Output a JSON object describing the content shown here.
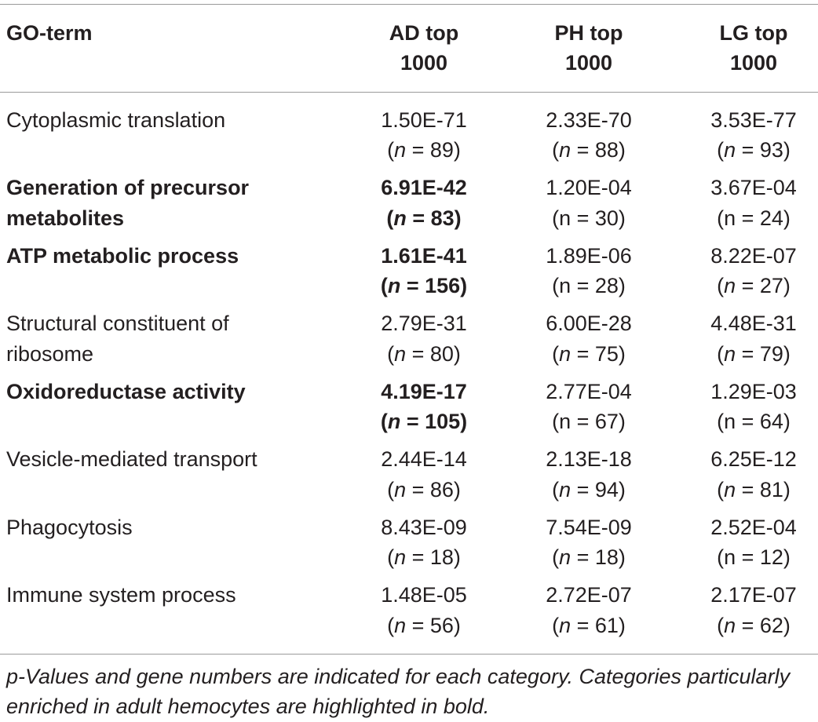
{
  "table": {
    "headers": {
      "go_term": "GO-term",
      "ad": "AD top 1000",
      "ph": "PH top 1000",
      "lg": "LG top 1000"
    },
    "rows": [
      {
        "term": "Cytoplasmic translation",
        "bold": false,
        "ad": {
          "p_value": "1.50E-71",
          "n_text": "(n = 89)",
          "n_italic": true,
          "bold": false
        },
        "ph": {
          "p_value": "2.33E-70",
          "n_text": "(n = 88)",
          "n_italic": true,
          "bold": false
        },
        "lg": {
          "p_value": "3.53E-77",
          "n_text": "(n = 93)",
          "n_italic": true,
          "bold": false
        }
      },
      {
        "term": "Generation of precursor metabolites",
        "bold": true,
        "ad": {
          "p_value": "6.91E-42",
          "n_text": "(n = 83)",
          "n_italic": true,
          "bold": true
        },
        "ph": {
          "p_value": "1.20E-04",
          "n_text": "(n = 30)",
          "n_italic": false,
          "bold": false
        },
        "lg": {
          "p_value": "3.67E-04",
          "n_text": "(n = 24)",
          "n_italic": false,
          "bold": false
        }
      },
      {
        "term": "ATP metabolic process",
        "bold": true,
        "ad": {
          "p_value": "1.61E-41",
          "n_text": "(n = 156)",
          "n_italic": true,
          "bold": true
        },
        "ph": {
          "p_value": "1.89E-06",
          "n_text": "(n = 28)",
          "n_italic": false,
          "bold": false
        },
        "lg": {
          "p_value": "8.22E-07",
          "n_text": "(n = 27)",
          "n_italic": true,
          "bold": false
        }
      },
      {
        "term": "Structural constituent of ribosome",
        "bold": false,
        "ad": {
          "p_value": "2.79E-31",
          "n_text": "(n = 80)",
          "n_italic": true,
          "bold": false
        },
        "ph": {
          "p_value": "6.00E-28",
          "n_text": "(n = 75)",
          "n_italic": true,
          "bold": false
        },
        "lg": {
          "p_value": "4.48E-31",
          "n_text": "(n = 79)",
          "n_italic": true,
          "bold": false
        }
      },
      {
        "term": "Oxidoreductase activity",
        "bold": true,
        "ad": {
          "p_value": "4.19E-17",
          "n_text": "(n = 105)",
          "n_italic": true,
          "bold": true
        },
        "ph": {
          "p_value": "2.77E-04",
          "n_text": "(n = 67)",
          "n_italic": false,
          "bold": false
        },
        "lg": {
          "p_value": "1.29E-03",
          "n_text": "(n = 64)",
          "n_italic": false,
          "bold": false
        }
      },
      {
        "term": "Vesicle-mediated transport",
        "bold": false,
        "ad": {
          "p_value": "2.44E-14",
          "n_text": "(n = 86)",
          "n_italic": true,
          "bold": false
        },
        "ph": {
          "p_value": "2.13E-18",
          "n_text": "(n = 94)",
          "n_italic": true,
          "bold": false
        },
        "lg": {
          "p_value": "6.25E-12",
          "n_text": "(n = 81)",
          "n_italic": true,
          "bold": false
        }
      },
      {
        "term": "Phagocytosis",
        "bold": false,
        "ad": {
          "p_value": "8.43E-09",
          "n_text": "(n = 18)",
          "n_italic": true,
          "bold": false
        },
        "ph": {
          "p_value": "7.54E-09",
          "n_text": "(n = 18)",
          "n_italic": true,
          "bold": false
        },
        "lg": {
          "p_value": "2.52E-04",
          "n_text": "(n = 12)",
          "n_italic": false,
          "bold": false
        }
      },
      {
        "term": "Immune system process",
        "bold": false,
        "ad": {
          "p_value": "1.48E-05",
          "n_text": "(n = 56)",
          "n_italic": true,
          "bold": false
        },
        "ph": {
          "p_value": "2.72E-07",
          "n_text": "(n = 61)",
          "n_italic": true,
          "bold": false
        },
        "lg": {
          "p_value": "2.17E-07",
          "n_text": "(n = 62)",
          "n_italic": true,
          "bold": false
        }
      }
    ]
  },
  "footnote": "p-Values and gene numbers are indicated for each category. Categories particularly enriched in adult hemocytes are highlighted in bold.",
  "colors": {
    "text": "#231f20",
    "rule": "#9a9a9a"
  }
}
